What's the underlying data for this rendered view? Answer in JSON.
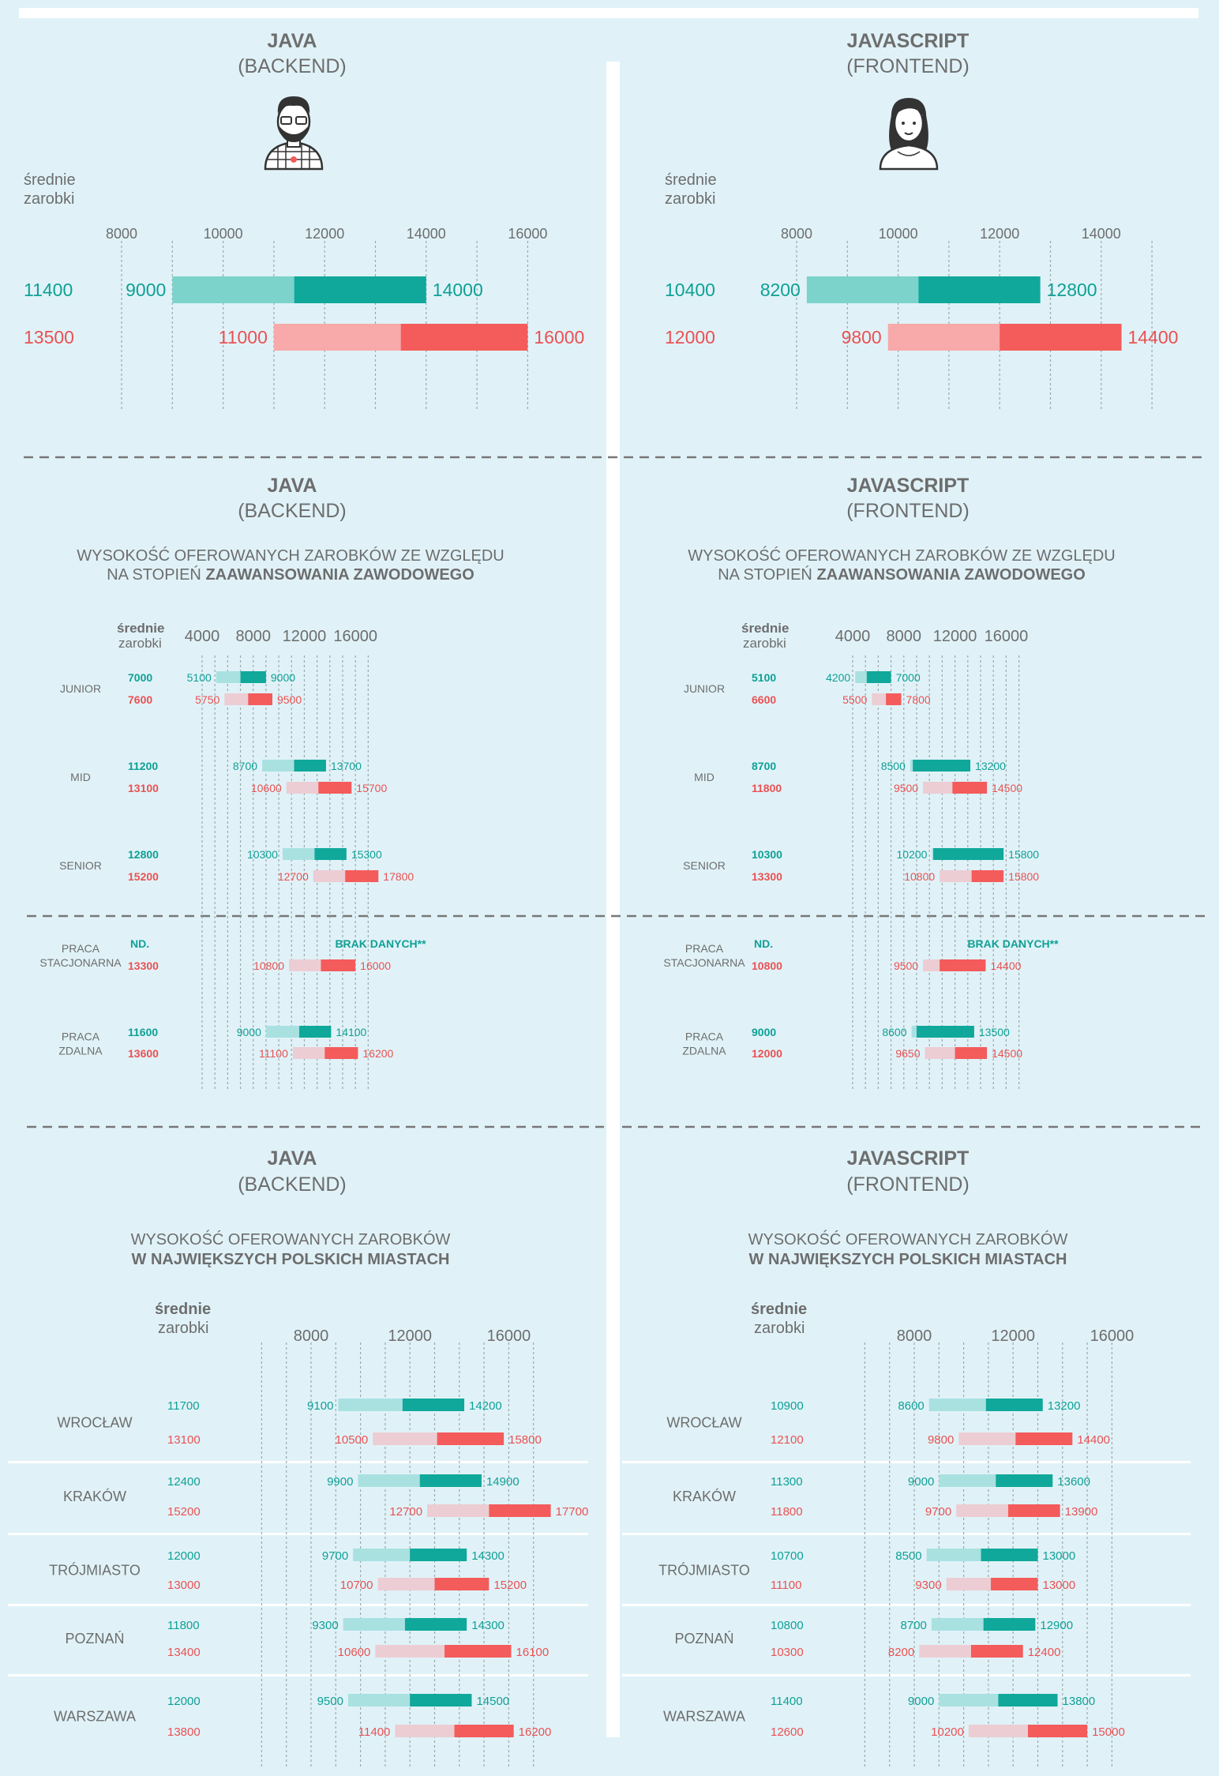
{
  "colors": {
    "background": "#e0f2f8",
    "teal": "#10a89a",
    "teal_light": "#7cd3cb",
    "teal_lighter": "#a9e1e1",
    "red": "#f45b5b",
    "red_light": "#f8a9aa",
    "red_lighter": "#eccdd3",
    "gray_text": "#6d6d6d",
    "teal_text": "#0fa095",
    "red_text": "#ea5152"
  },
  "avg_label": [
    "średnie",
    "zarobki"
  ],
  "panels": [
    {
      "title": "JAVA",
      "subtitle": "(BACKEND)"
    },
    {
      "title": "JAVASCRIPT",
      "subtitle": "(FRONTEND)"
    }
  ],
  "section2": {
    "heading_line1": "WYSOKOŚĆ OFEROWANYCH ZAROBKÓW ZE WZGLĘDU",
    "heading_line2_plain": "NA STOPIEŃ",
    "heading_line2_bold": "ZAAWANSOWANIA ZAWODOWEGO"
  },
  "section3": {
    "heading_line1": "WYSOKOŚĆ OFEROWANYCH ZAROBKÓW",
    "heading_line2_bold": "W NAJWIĘKSZYCH POLSKICH MIASTACH"
  },
  "chart_data": [
    {
      "id": "overall-java",
      "type": "range-bar",
      "title": "JAVA (BACKEND)",
      "ticks": [
        8000,
        10000,
        12000,
        14000,
        16000
      ],
      "rows": [
        {
          "series": "teal",
          "avg": 11400,
          "min": 9000,
          "max": 14000
        },
        {
          "series": "red",
          "avg": 13500,
          "min": 11000,
          "max": 16000
        }
      ]
    },
    {
      "id": "overall-js",
      "type": "range-bar",
      "title": "JAVASCRIPT (FRONTEND)",
      "ticks": [
        8000,
        10000,
        12000,
        14000
      ],
      "rows": [
        {
          "series": "teal",
          "avg": 10400,
          "min": 8200,
          "max": 12800
        },
        {
          "series": "red",
          "avg": 12000,
          "min": 9800,
          "max": 14400
        }
      ]
    },
    {
      "id": "level-java",
      "type": "range-bar",
      "title": "JAVA (BACKEND) – poziom zaawansowania",
      "ticks": [
        4000,
        8000,
        12000,
        16000
      ],
      "groups": [
        {
          "label": "JUNIOR",
          "rows": [
            {
              "series": "teal",
              "avg": 7000,
              "min": 5100,
              "max": 9000
            },
            {
              "series": "red",
              "avg": 7600,
              "min": 5750,
              "max": 9500
            }
          ]
        },
        {
          "label": "MID",
          "rows": [
            {
              "series": "teal",
              "avg": 11200,
              "min": 8700,
              "max": 13700
            },
            {
              "series": "red",
              "avg": 13100,
              "min": 10600,
              "max": 15700
            }
          ]
        },
        {
          "label": "SENIOR",
          "rows": [
            {
              "series": "teal",
              "avg": 12800,
              "min": 10300,
              "max": 15300
            },
            {
              "series": "red",
              "avg": 15200,
              "min": 12700,
              "max": 17800
            }
          ]
        },
        {
          "label": "PRACA STACJONARNA",
          "rows": [
            {
              "series": "teal",
              "avg_text": "ND.",
              "note": "BRAK DANYCH**"
            },
            {
              "series": "red",
              "avg": 13300,
              "min": 10800,
              "max": 16000
            }
          ]
        },
        {
          "label": "PRACA ZDALNA",
          "rows": [
            {
              "series": "teal",
              "avg": 11600,
              "min": 9000,
              "max": 14100
            },
            {
              "series": "red",
              "avg": 13600,
              "min": 11100,
              "max": 16200
            }
          ]
        }
      ]
    },
    {
      "id": "level-js",
      "type": "range-bar",
      "title": "JAVASCRIPT (FRONTEND) – poziom zaawansowania",
      "ticks": [
        4000,
        8000,
        12000,
        16000
      ],
      "groups": [
        {
          "label": "JUNIOR",
          "rows": [
            {
              "series": "teal",
              "avg": 5100,
              "min": 4200,
              "max": 7000
            },
            {
              "series": "red",
              "avg": 6600,
              "min": 5500,
              "max": 7800
            }
          ]
        },
        {
          "label": "MID",
          "rows": [
            {
              "series": "teal",
              "avg": 8700,
              "min": 8500,
              "max": 13200
            },
            {
              "series": "red",
              "avg": 11800,
              "min": 9500,
              "max": 14500
            }
          ]
        },
        {
          "label": "SENIOR",
          "rows": [
            {
              "series": "teal",
              "avg": 10300,
              "min": 10200,
              "max": 15800
            },
            {
              "series": "red",
              "avg": 13300,
              "min": 10800,
              "max": 15800
            }
          ]
        },
        {
          "label": "PRACA STACJONARNA",
          "rows": [
            {
              "series": "teal",
              "avg_text": "ND.",
              "note": "BRAK DANYCH**"
            },
            {
              "series": "red",
              "avg": 10800,
              "min": 9500,
              "max": 14400
            }
          ]
        },
        {
          "label": "PRACA ZDALNA",
          "rows": [
            {
              "series": "teal",
              "avg": 9000,
              "min": 8600,
              "max": 13500
            },
            {
              "series": "red",
              "avg": 12000,
              "min": 9650,
              "max": 14500
            }
          ]
        }
      ]
    },
    {
      "id": "city-java",
      "type": "range-bar",
      "title": "JAVA (BACKEND) – miasta",
      "ticks": [
        8000,
        12000,
        16000
      ],
      "groups": [
        {
          "label": "WROCŁAW",
          "rows": [
            {
              "series": "teal",
              "avg": 11700,
              "min": 9100,
              "max": 14200
            },
            {
              "series": "red",
              "avg": 13100,
              "min": 10500,
              "max": 15800
            }
          ]
        },
        {
          "label": "KRAKÓW",
          "rows": [
            {
              "series": "teal",
              "avg": 12400,
              "min": 9900,
              "max": 14900
            },
            {
              "series": "red",
              "avg": 15200,
              "min": 12700,
              "max": 17700
            }
          ]
        },
        {
          "label": "TRÓJMIASTO",
          "rows": [
            {
              "series": "teal",
              "avg": 12000,
              "min": 9700,
              "max": 14300
            },
            {
              "series": "red",
              "avg": 13000,
              "min": 10700,
              "max": 15200
            }
          ]
        },
        {
          "label": "POZNAŃ",
          "rows": [
            {
              "series": "teal",
              "avg": 11800,
              "min": 9300,
              "max": 14300
            },
            {
              "series": "red",
              "avg": 13400,
              "min": 10600,
              "max": 16100
            }
          ]
        },
        {
          "label": "WARSZAWA",
          "rows": [
            {
              "series": "teal",
              "avg": 12000,
              "min": 9500,
              "max": 14500
            },
            {
              "series": "red",
              "avg": 13800,
              "min": 11400,
              "max": 16200
            }
          ]
        }
      ]
    },
    {
      "id": "city-js",
      "type": "range-bar",
      "title": "JAVASCRIPT (FRONTEND) – miasta",
      "ticks": [
        8000,
        12000,
        16000
      ],
      "groups": [
        {
          "label": "WROCŁAW",
          "rows": [
            {
              "series": "teal",
              "avg": 10900,
              "min": 8600,
              "max": 13200
            },
            {
              "series": "red",
              "avg": 12100,
              "min": 9800,
              "max": 14400
            }
          ]
        },
        {
          "label": "KRAKÓW",
          "rows": [
            {
              "series": "teal",
              "avg": 11300,
              "min": 9000,
              "max": 13600
            },
            {
              "series": "red",
              "avg": 11800,
              "min": 9700,
              "max": 13900
            }
          ]
        },
        {
          "label": "TRÓJMIASTO",
          "rows": [
            {
              "series": "teal",
              "avg": 10700,
              "min": 8500,
              "max": 13000
            },
            {
              "series": "red",
              "avg": 11100,
              "min": 9300,
              "max": 13000
            }
          ]
        },
        {
          "label": "POZNAŃ",
          "rows": [
            {
              "series": "teal",
              "avg": 10800,
              "min": 8700,
              "max": 12900
            },
            {
              "series": "red",
              "avg": 10300,
              "min": 8200,
              "max": 12400
            }
          ]
        },
        {
          "label": "WARSZAWA",
          "rows": [
            {
              "series": "teal",
              "avg": 11400,
              "min": 9000,
              "max": 13800
            },
            {
              "series": "red",
              "avg": 12600,
              "min": 10200,
              "max": 15000
            }
          ]
        }
      ]
    }
  ]
}
